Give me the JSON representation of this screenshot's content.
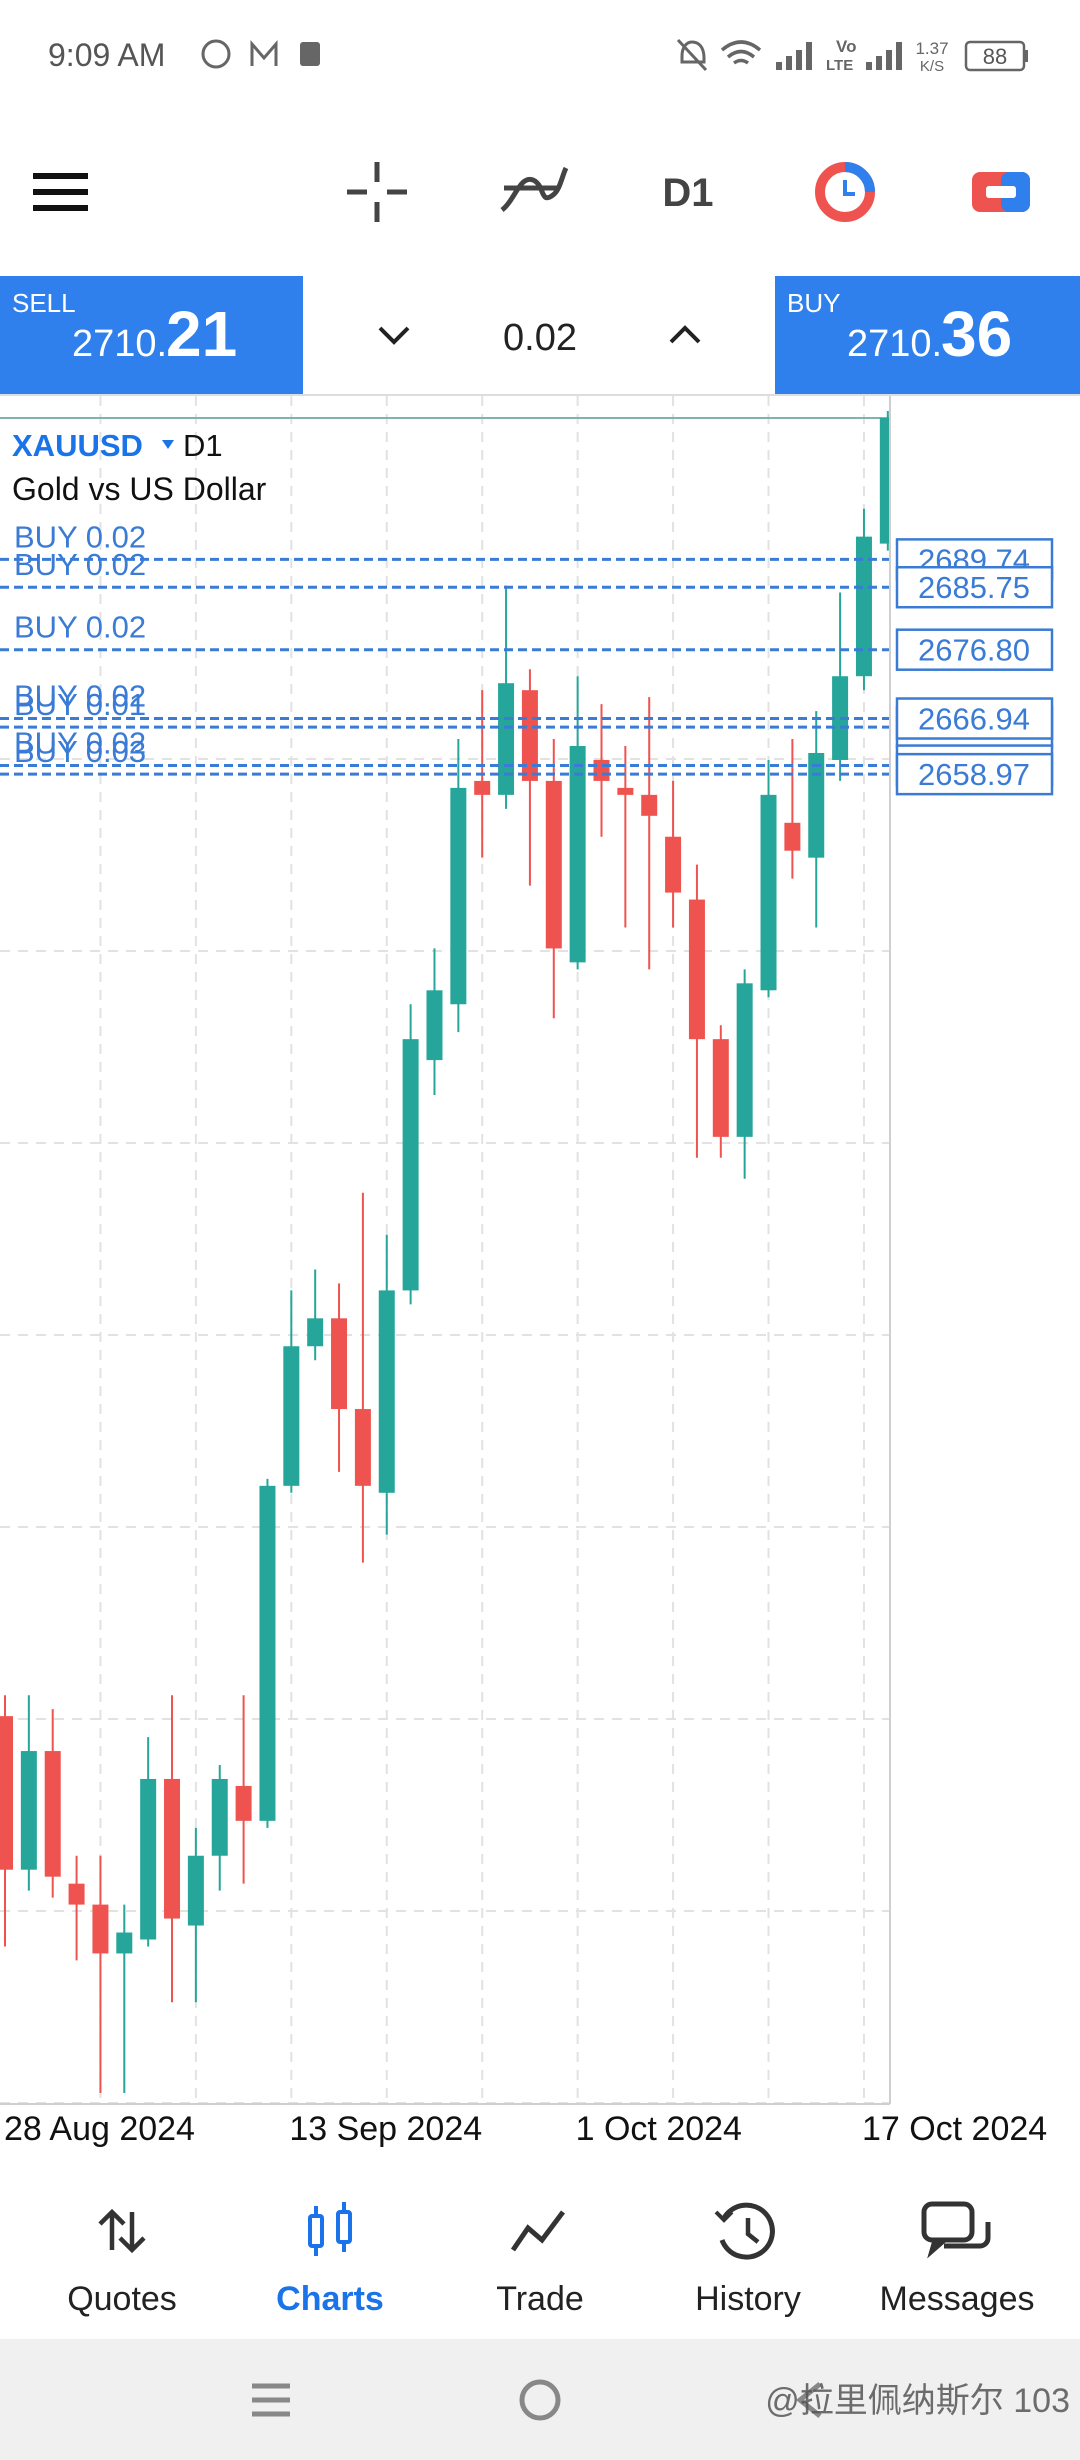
{
  "status_bar": {
    "time": "9:09 AM",
    "volte_top": "Vo",
    "volte_bottom": "LTE",
    "speed": "1.37",
    "speed_unit": "K/S",
    "battery": "88"
  },
  "toolbar": {
    "timeframe": "D1"
  },
  "trade_panel": {
    "sell_label": "SELL",
    "sell_price_main": "2710.",
    "sell_price_big": "21",
    "volume": "0.02",
    "buy_label": "BUY",
    "buy_price_main": "2710.",
    "buy_price_big": "36"
  },
  "chart_data": {
    "type": "candlestick",
    "symbol": "XAUUSD",
    "timeframe": "D1",
    "description": "Gold vs US Dollar",
    "categories": [
      "28 Aug 2024",
      null,
      null,
      null,
      null,
      null,
      null,
      null,
      null,
      null,
      null,
      null,
      "13 Sep 2024",
      null,
      null,
      null,
      null,
      null,
      null,
      null,
      null,
      null,
      null,
      null,
      "1 Oct 2024",
      null,
      null,
      null,
      null,
      null,
      null,
      null,
      null,
      null,
      null,
      null,
      "17 Oct 2024",
      null
    ],
    "open": [
      2524,
      2502,
      2519,
      2500,
      2497,
      2490,
      2492,
      2515,
      2494,
      2504,
      2514,
      2509,
      2557,
      2577,
      2581,
      2568,
      2556,
      2585,
      2618,
      2626,
      2658,
      2656,
      2671,
      2658,
      2632,
      2661,
      2657,
      2656,
      2650,
      2641,
      2621,
      2607,
      2628,
      2652,
      2647,
      2661,
      2673,
      2692
    ],
    "high": [
      2527,
      2527,
      2525,
      2504,
      2504,
      2497,
      2521,
      2527,
      2508,
      2517,
      2527,
      2558,
      2585,
      2588,
      2586,
      2599,
      2593,
      2626,
      2634,
      2664,
      2671,
      2686,
      2674,
      2664,
      2673,
      2669,
      2663,
      2670,
      2658,
      2646,
      2623,
      2631,
      2661,
      2664,
      2668,
      2685,
      2697,
      2711
    ],
    "low": [
      2491,
      2499,
      2498,
      2489,
      2470,
      2470,
      2491,
      2483,
      2483,
      2499,
      2500,
      2508,
      2556,
      2575,
      2559,
      2546,
      2550,
      2583,
      2613,
      2622,
      2647,
      2654,
      2643,
      2624,
      2631,
      2650,
      2637,
      2631,
      2637,
      2604,
      2604,
      2601,
      2627,
      2644,
      2637,
      2658,
      2671,
      2691
    ],
    "close": [
      2502,
      2519,
      2501,
      2497,
      2490,
      2493,
      2515,
      2495,
      2504,
      2515,
      2509,
      2557,
      2577,
      2581,
      2568,
      2557,
      2585,
      2621,
      2628,
      2657,
      2656,
      2672,
      2658,
      2634,
      2663,
      2658,
      2656,
      2653,
      2642,
      2621,
      2607,
      2629,
      2656,
      2648,
      2662,
      2673,
      2693,
      2710
    ],
    "up_color": "#26a69a",
    "down_color": "#ef5350",
    "ylim": [
      2468,
      2711
    ],
    "order_color": "#3a7bd5",
    "orders": [
      {
        "label": "BUY 0.02",
        "price": 2689.74
      },
      {
        "label": "BUY 0.02",
        "price": 2685.75
      },
      {
        "label": "BUY 0.02",
        "price": {
          "value": 2676.8,
          "label": "2676.80"
        }
      },
      {
        "label": "BUY 0.01",
        "price": 2665.7
      },
      {
        "label": "BUY 0.02",
        "price": 2666.94
      },
      {
        "label": "BUY 0.02",
        "price": 2660.2
      },
      {
        "label": "BUY 0.03",
        "price": 2658.97
      }
    ]
  },
  "bottom_nav": {
    "items": [
      "Quotes",
      "Charts",
      "Trade",
      "History",
      "Messages"
    ],
    "active": 1,
    "active_color": "#1a73e8"
  },
  "watermark": "@拉里佩纳斯尔 103"
}
